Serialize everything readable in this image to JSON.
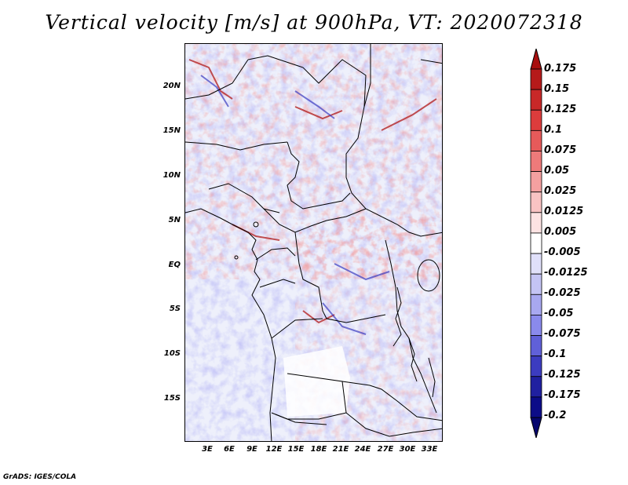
{
  "title": "Vertical velocity [m/s] at 900hPa, VT: 2020072318",
  "credit": "GrADS: IGES/COLA",
  "lat_labels": [
    "20N",
    "15N",
    "10N",
    "5N",
    "EQ",
    "5S",
    "10S",
    "15S"
  ],
  "lon_labels": [
    "3E",
    "6E",
    "9E",
    "12E",
    "15E",
    "18E",
    "21E",
    "24E",
    "27E",
    "30E",
    "33E"
  ],
  "colorbar": {
    "labels": [
      "0.175",
      "0.15",
      "0.125",
      "0.1",
      "0.075",
      "0.05",
      "0.025",
      "0.0125",
      "0.005",
      "-0.005",
      "-0.0125",
      "-0.025",
      "-0.05",
      "-0.075",
      "-0.1",
      "-0.125",
      "-0.175",
      "-0.2"
    ],
    "colors": [
      "#a80f0f",
      "#b51a1a",
      "#c82828",
      "#dc3c3c",
      "#e65a5a",
      "#ee7a7a",
      "#f4a0a0",
      "#f9c3c3",
      "#fde3e3",
      "#ffffff",
      "#e0e0fa",
      "#c4c4f4",
      "#a8a8f0",
      "#8a8aec",
      "#6060d8",
      "#3c3cc0",
      "#2020a0",
      "#0c0c88",
      "#06066e"
    ]
  }
}
